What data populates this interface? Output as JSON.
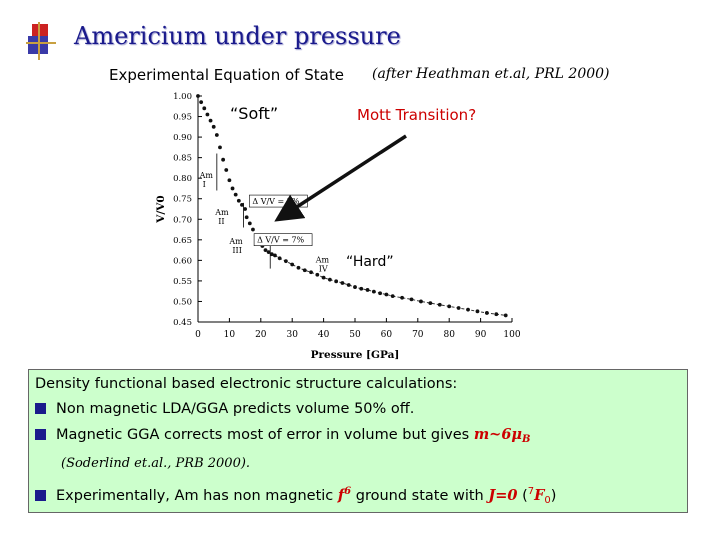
{
  "slide": {
    "title": "Americium under pressure",
    "subtitle": "Experimental Equation of State",
    "citation": "(after Heathman et.al, PRL 2000)",
    "label_soft": "“Soft”",
    "label_mott": "Mott Transition?",
    "label_hard": "“Hard”",
    "colors": {
      "title": "#1a1a8c",
      "box_bg": "#ccffcc",
      "accent_red": "#cc0000",
      "bullet": "#1a1a8c"
    }
  },
  "chart_data": {
    "type": "scatter",
    "xlabel": "Pressure [GPa]",
    "ylabel": "V/V0",
    "xlim": [
      0,
      100
    ],
    "ylim": [
      0.45,
      1.0
    ],
    "xticks": [
      "0",
      "10",
      "20",
      "30",
      "40",
      "50",
      "60",
      "70",
      "80",
      "90",
      "100"
    ],
    "yticks": [
      "1.00",
      "0.95",
      "0.90",
      "0.85",
      "0.80",
      "0.75",
      "0.70",
      "0.65",
      "0.60",
      "0.55",
      "0.50",
      "0.45"
    ],
    "phases": [
      "Am I",
      "Am II",
      "Am III",
      "Am IV"
    ],
    "annotations": [
      "Δ V/V = 2%",
      "Δ V/V = 7%"
    ],
    "points": [
      [
        0,
        1.0
      ],
      [
        1,
        0.985
      ],
      [
        2,
        0.97
      ],
      [
        3,
        0.955
      ],
      [
        4,
        0.94
      ],
      [
        5,
        0.925
      ],
      [
        6,
        0.905
      ],
      [
        7,
        0.875
      ],
      [
        8,
        0.845
      ],
      [
        9,
        0.82
      ],
      [
        10,
        0.795
      ],
      [
        11,
        0.775
      ],
      [
        12,
        0.76
      ],
      [
        13,
        0.745
      ],
      [
        14,
        0.735
      ],
      [
        15,
        0.725
      ],
      [
        15.5,
        0.705
      ],
      [
        16.5,
        0.69
      ],
      [
        17.5,
        0.675
      ],
      [
        18.5,
        0.66
      ],
      [
        19.5,
        0.645
      ],
      [
        20.5,
        0.635
      ],
      [
        21.5,
        0.625
      ],
      [
        22.5,
        0.62
      ],
      [
        23.5,
        0.615
      ],
      [
        24.5,
        0.612
      ],
      [
        26,
        0.605
      ],
      [
        28,
        0.598
      ],
      [
        30,
        0.59
      ],
      [
        32,
        0.582
      ],
      [
        34,
        0.576
      ],
      [
        36,
        0.571
      ],
      [
        38,
        0.565
      ],
      [
        40,
        0.558
      ],
      [
        42,
        0.553
      ],
      [
        44,
        0.549
      ],
      [
        46,
        0.545
      ],
      [
        48,
        0.54
      ],
      [
        50,
        0.535
      ],
      [
        52,
        0.531
      ],
      [
        54,
        0.528
      ],
      [
        56,
        0.524
      ],
      [
        58,
        0.52
      ],
      [
        60,
        0.517
      ],
      [
        62,
        0.513
      ],
      [
        65,
        0.509
      ],
      [
        68,
        0.505
      ],
      [
        71,
        0.5
      ],
      [
        74,
        0.496
      ],
      [
        77,
        0.492
      ],
      [
        80,
        0.488
      ],
      [
        83,
        0.484
      ],
      [
        86,
        0.48
      ],
      [
        89,
        0.476
      ],
      [
        92,
        0.472
      ],
      [
        95,
        0.469
      ],
      [
        98,
        0.466
      ]
    ]
  },
  "box": {
    "intro": "Density functional based electronic structure calculations:",
    "bullet1": "Non magnetic LDA/GGA predicts volume 50% off.",
    "bullet2_text": "Magnetic GGA corrects most of error in volume but gives ",
    "bullet2_m": "m~6μ",
    "bullet2_m_sub": "B",
    "ref": "(Soderlind et.al., PRB 2000).",
    "bullet3_text": "Experimentally, Am has non magnetic ",
    "bullet3_f": "f",
    "bullet3_f_sup": "6",
    "bullet3_mid": " ground state with ",
    "bullet3_j": "J=0",
    "bullet3_paren_open": " (",
    "bullet3_term_sup": "7",
    "bullet3_term": "F",
    "bullet3_term_sub": "0",
    "bullet3_paren_close": ")"
  }
}
